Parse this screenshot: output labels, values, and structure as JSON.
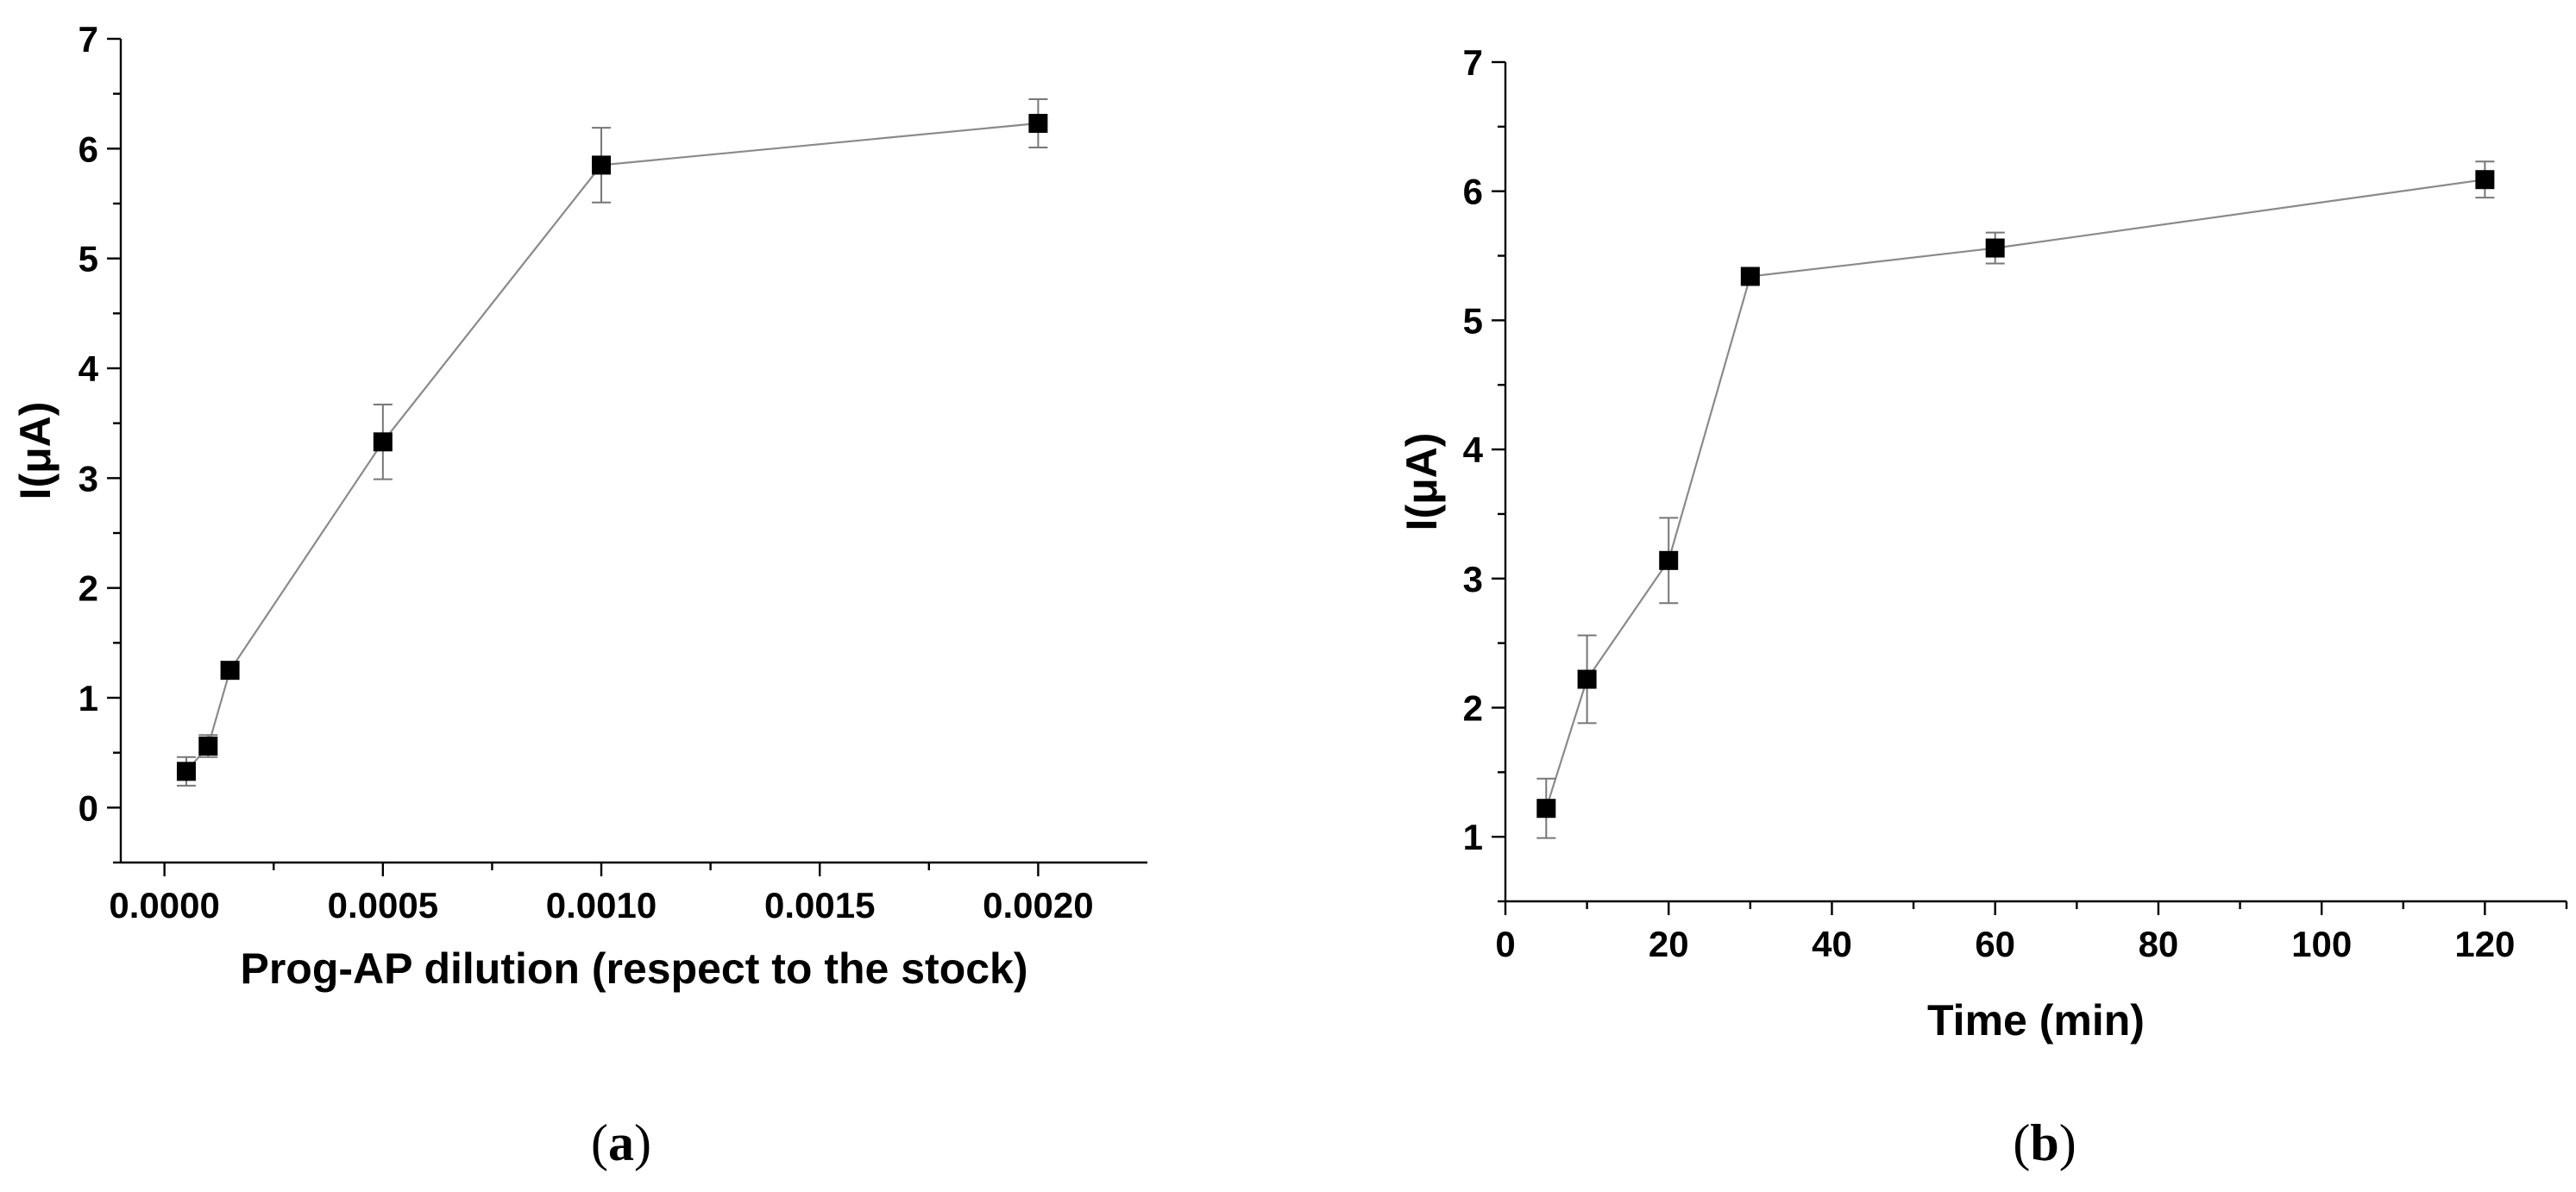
{
  "chart_data": [
    {
      "type": "line",
      "panel_label": {
        "open": "(",
        "letter": "a",
        "close": ")"
      },
      "xlabel": "Prog-AP dilution (respect to the stock)",
      "ylabel": "I(μA)",
      "xlim": [
        -0.0001,
        0.00225
      ],
      "ylim": [
        -0.5,
        7
      ],
      "xticks": [
        0.0,
        0.0005,
        0.001,
        0.0015,
        0.002
      ],
      "xtick_labels": [
        "0.0000",
        "0.0005",
        "0.0010",
        "0.0015",
        "0.0020"
      ],
      "yticks": [
        0,
        1,
        2,
        3,
        4,
        5,
        6,
        7
      ],
      "ytick_labels": [
        "0",
        "1",
        "2",
        "3",
        "4",
        "5",
        "6",
        "7"
      ],
      "series": [
        {
          "x": [
            5e-05,
            0.0001,
            0.00015,
            0.0005,
            0.001,
            0.002
          ],
          "y": [
            0.33,
            0.56,
            1.25,
            3.33,
            5.85,
            6.23
          ],
          "err": [
            0.13,
            0.1,
            0.05,
            0.34,
            0.34,
            0.22
          ]
        }
      ],
      "grid": false
    },
    {
      "type": "line",
      "panel_label": {
        "open": "(",
        "letter": "b",
        "close": ")"
      },
      "xlabel": "Time (min)",
      "ylabel": "I(μA)",
      "xlim": [
        0,
        130
      ],
      "ylim": [
        0.5,
        7
      ],
      "xticks": [
        0,
        20,
        40,
        60,
        80,
        100,
        120
      ],
      "xtick_labels": [
        "0",
        "20",
        "40",
        "60",
        "80",
        "100",
        "120"
      ],
      "yticks": [
        1,
        2,
        3,
        4,
        5,
        6,
        7
      ],
      "ytick_labels": [
        "1",
        "2",
        "3",
        "4",
        "5",
        "6",
        "7"
      ],
      "series": [
        {
          "x": [
            5,
            10,
            20,
            30,
            60,
            120
          ],
          "y": [
            1.22,
            2.22,
            3.14,
            5.34,
            5.56,
            6.09
          ],
          "err": [
            0.23,
            0.34,
            0.33,
            0.05,
            0.12,
            0.14
          ]
        }
      ],
      "grid": false
    }
  ]
}
